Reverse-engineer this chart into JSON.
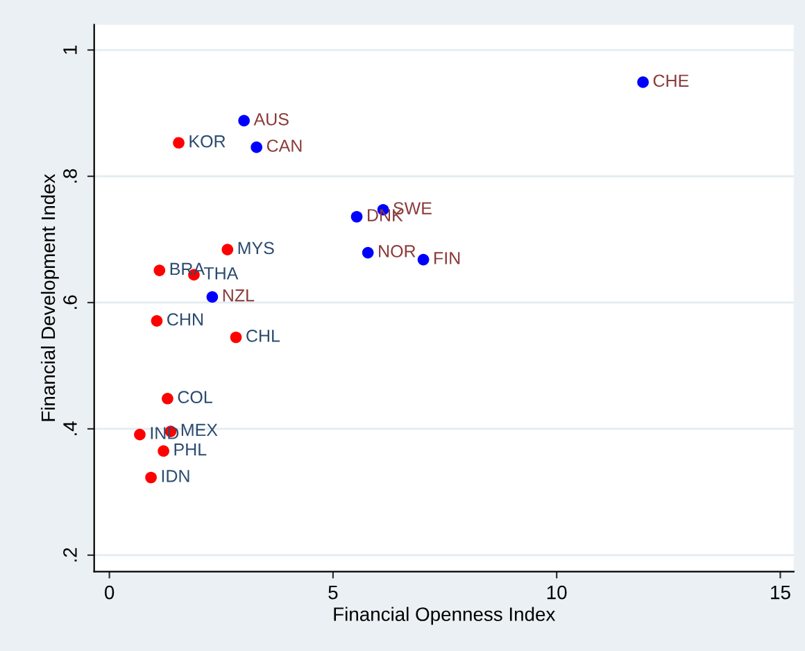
{
  "chart_data": {
    "type": "scatter",
    "xlabel": "Financial Openness Index",
    "ylabel": "Financial Development Index",
    "xlim": [
      -0.34,
      15.3
    ],
    "ylim": [
      0.174,
      1.04
    ],
    "xticks": [
      0,
      5,
      10,
      15
    ],
    "yticks": [
      {
        "value": 0.2,
        "label": ".2"
      },
      {
        "value": 0.4,
        "label": ".4"
      },
      {
        "value": 0.6,
        "label": ".6"
      },
      {
        "value": 0.8,
        "label": ".8"
      },
      {
        "value": 1,
        "label": "1"
      }
    ],
    "grid": "y",
    "marker": "circle",
    "legend": false,
    "series": [
      {
        "color": "#0000ff",
        "x": [
          11.93,
          3.01,
          3.29,
          6.12,
          5.53,
          5.78,
          7.02,
          2.3
        ],
        "values": [
          0.949,
          0.888,
          0.846,
          0.747,
          0.736,
          0.679,
          0.668,
          0.609
        ]
      },
      {
        "color": "#ff0000",
        "x": [
          1.55,
          2.64,
          1.12,
          1.89,
          1.06,
          2.83,
          1.3,
          1.37,
          0.68,
          1.21,
          0.93
        ],
        "values": [
          0.853,
          0.684,
          0.651,
          0.644,
          0.571,
          0.545,
          0.448,
          0.396,
          0.391,
          0.365,
          0.323
        ]
      }
    ],
    "annotations": [
      {
        "text": "CHE",
        "x": 11.93,
        "y": 0.949
      },
      {
        "text": "AUS",
        "x": 3.01,
        "y": 0.888
      },
      {
        "text": "CAN",
        "x": 3.29,
        "y": 0.846
      },
      {
        "text": "SWE",
        "x": 6.12,
        "y": 0.747
      },
      {
        "text": "DNK",
        "x": 5.53,
        "y": 0.736
      },
      {
        "text": "NOR",
        "x": 5.78,
        "y": 0.679
      },
      {
        "text": "FIN",
        "x": 7.02,
        "y": 0.668
      },
      {
        "text": "NZL",
        "x": 2.3,
        "y": 0.609
      },
      {
        "text": "KOR",
        "x": 1.55,
        "y": 0.853
      },
      {
        "text": "MYS",
        "x": 2.64,
        "y": 0.684
      },
      {
        "text": "BRA",
        "x": 1.12,
        "y": 0.651
      },
      {
        "text": "THA",
        "x": 1.89,
        "y": 0.644
      },
      {
        "text": "CHN",
        "x": 1.06,
        "y": 0.571
      },
      {
        "text": "CHL",
        "x": 2.83,
        "y": 0.545
      },
      {
        "text": "COL",
        "x": 1.3,
        "y": 0.448
      },
      {
        "text": "MEX",
        "x": 1.37,
        "y": 0.396
      },
      {
        "text": "IND",
        "x": 0.68,
        "y": 0.391
      },
      {
        "text": "PHL",
        "x": 1.21,
        "y": 0.365
      },
      {
        "text": "IDN",
        "x": 0.93,
        "y": 0.323
      }
    ]
  }
}
